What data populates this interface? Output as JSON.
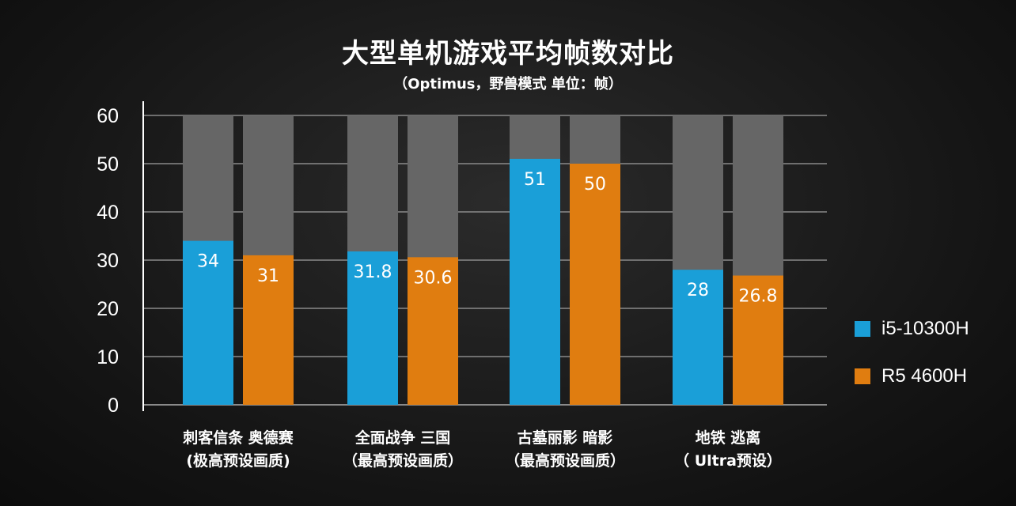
{
  "title": "大型单机游戏平均帧数对比",
  "subtitle": "（Optimus，野兽模式  单位：帧）",
  "chart_data": {
    "type": "bar",
    "title": "大型单机游戏平均帧数对比",
    "subtitle": "（Optimus，野兽模式  单位：帧）",
    "categories": [
      [
        "刺客信条 奥德赛",
        "(极高预设画质)"
      ],
      [
        "全面战争 三国",
        "（最高预设画质）"
      ],
      [
        "古墓丽影 暗影",
        "（最高预设画质）"
      ],
      [
        "地铁 逃离",
        "（ Ultra预设）"
      ]
    ],
    "series": [
      {
        "name": "i5-10300H",
        "values": [
          34,
          31.8,
          51,
          28
        ],
        "color": "#1a9fd8"
      },
      {
        "name": "R5 4600H",
        "values": [
          31,
          30.6,
          50,
          26.8
        ],
        "color": "#e07d10"
      }
    ],
    "value_labels": [
      [
        "34",
        "31.8",
        "51",
        "28"
      ],
      [
        "31",
        "30.6",
        "50",
        "26.8"
      ]
    ],
    "ylim": [
      0,
      60
    ],
    "yticks": [
      0,
      10,
      20,
      30,
      40,
      50,
      60
    ],
    "grid": true,
    "legend": "right",
    "background_bar_color": "#666666"
  }
}
